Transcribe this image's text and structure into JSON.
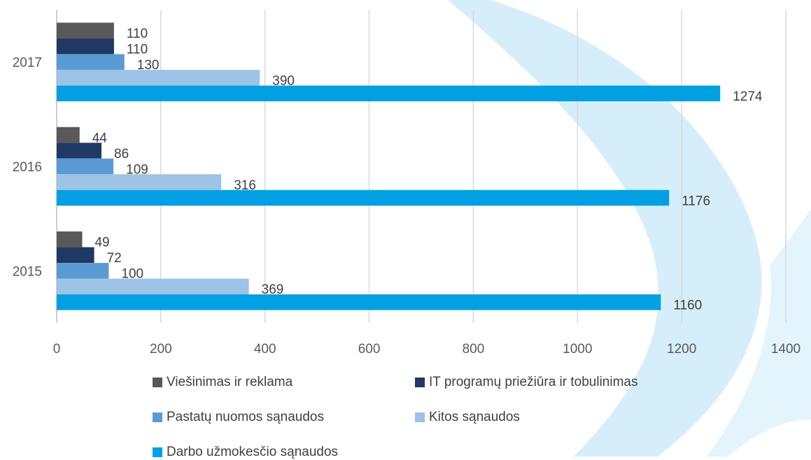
{
  "chart_data": {
    "type": "bar",
    "orientation": "horizontal",
    "categories": [
      "2015",
      "2016",
      "2017"
    ],
    "series": [
      {
        "name": "Viešinimas ir reklama",
        "color": "#595959",
        "values": [
          49,
          44,
          110
        ]
      },
      {
        "name": "IT programų priežiūra ir tobulinimas",
        "color": "#203864",
        "values": [
          72,
          86,
          110
        ]
      },
      {
        "name": "Pastatų nuomos sąnaudos",
        "color": "#5b9bd5",
        "values": [
          100,
          109,
          130
        ]
      },
      {
        "name": "Kitos sąnaudos",
        "color": "#9dc3e6",
        "values": [
          369,
          316,
          390
        ]
      },
      {
        "name": "Darbo užmokesčio sąnaudos",
        "color": "#00a0e3",
        "values": [
          1160,
          1176,
          1274
        ]
      }
    ],
    "xlim": [
      0,
      1400
    ],
    "x_ticks": [
      0,
      200,
      400,
      600,
      800,
      1000,
      1200,
      1400
    ],
    "grid": true,
    "legend_position": "bottom",
    "data_labels": true
  }
}
